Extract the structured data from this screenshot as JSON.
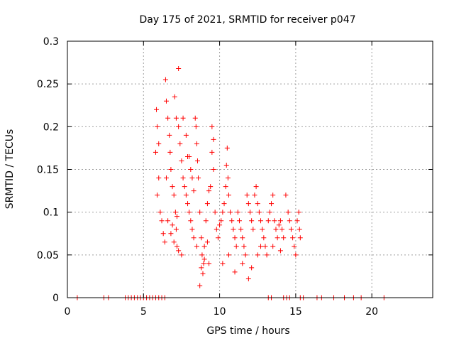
{
  "chart_data": {
    "type": "scatter",
    "title": "Day 175 of 2021, SRMTID for receiver p047",
    "xlabel": "GPS time / hours",
    "ylabel": "SRMTID / TECUs",
    "xlim": [
      0,
      24
    ],
    "ylim": [
      0,
      0.3
    ],
    "xticks": [
      0,
      5,
      10,
      15,
      20
    ],
    "yticks": [
      0,
      0.05,
      0.1,
      0.15,
      0.2,
      0.25,
      0.3
    ],
    "xtick_labels": [
      "0",
      "5",
      "10",
      "15",
      "20"
    ],
    "ytick_labels": [
      "0",
      "0.05",
      "0.1",
      "0.15",
      "0.2",
      "0.25",
      "0.3"
    ],
    "grid": true,
    "marker": "+",
    "color": "#ff0000",
    "series": [
      {
        "name": "SRMTID",
        "points": [
          [
            0.65,
            0
          ],
          [
            2.4,
            0
          ],
          [
            2.7,
            0
          ],
          [
            3.8,
            0
          ],
          [
            4.0,
            0
          ],
          [
            4.2,
            0
          ],
          [
            4.4,
            0
          ],
          [
            4.6,
            0
          ],
          [
            4.8,
            0
          ],
          [
            5.0,
            0
          ],
          [
            5.2,
            0
          ],
          [
            5.4,
            0
          ],
          [
            5.6,
            0
          ],
          [
            5.8,
            0
          ],
          [
            6.0,
            0
          ],
          [
            6.2,
            0
          ],
          [
            6.4,
            0
          ],
          [
            13.2,
            0
          ],
          [
            13.4,
            0
          ],
          [
            14.2,
            0
          ],
          [
            14.4,
            0
          ],
          [
            14.6,
            0
          ],
          [
            15.3,
            0
          ],
          [
            15.5,
            0
          ],
          [
            16.4,
            0
          ],
          [
            16.7,
            0
          ],
          [
            17.5,
            0
          ],
          [
            18.2,
            0
          ],
          [
            18.8,
            0
          ],
          [
            19.3,
            0
          ],
          [
            20.8,
            0
          ],
          [
            5.85,
            0.22
          ],
          [
            5.9,
            0.2
          ],
          [
            6.0,
            0.18
          ],
          [
            5.8,
            0.17
          ],
          [
            6.0,
            0.14
          ],
          [
            5.9,
            0.12
          ],
          [
            6.1,
            0.1
          ],
          [
            6.2,
            0.09
          ],
          [
            6.3,
            0.075
          ],
          [
            6.45,
            0.255
          ],
          [
            6.5,
            0.23
          ],
          [
            6.6,
            0.21
          ],
          [
            6.7,
            0.19
          ],
          [
            6.75,
            0.17
          ],
          [
            6.8,
            0.15
          ],
          [
            6.9,
            0.13
          ],
          [
            7.0,
            0.12
          ],
          [
            7.1,
            0.1
          ],
          [
            7.15,
            0.08
          ],
          [
            7.2,
            0.06
          ],
          [
            7.3,
            0.055
          ],
          [
            6.4,
            0.065
          ],
          [
            6.6,
            0.09
          ],
          [
            7.05,
            0.235
          ],
          [
            7.15,
            0.21
          ],
          [
            7.3,
            0.268
          ],
          [
            7.3,
            0.2
          ],
          [
            7.4,
            0.18
          ],
          [
            7.5,
            0.16
          ],
          [
            7.6,
            0.14
          ],
          [
            7.7,
            0.13
          ],
          [
            7.8,
            0.12
          ],
          [
            7.9,
            0.11
          ],
          [
            8.0,
            0.1
          ],
          [
            8.1,
            0.09
          ],
          [
            8.2,
            0.08
          ],
          [
            8.3,
            0.07
          ],
          [
            7.6,
            0.21
          ],
          [
            7.8,
            0.19
          ],
          [
            7.9,
            0.165
          ],
          [
            8.1,
            0.15
          ],
          [
            8.2,
            0.14
          ],
          [
            8.3,
            0.125
          ],
          [
            8.4,
            0.21
          ],
          [
            8.45,
            0.2
          ],
          [
            8.5,
            0.18
          ],
          [
            8.55,
            0.16
          ],
          [
            8.6,
            0.14
          ],
          [
            8.7,
            0.1
          ],
          [
            8.8,
            0.07
          ],
          [
            8.85,
            0.05
          ],
          [
            8.8,
            0.035
          ],
          [
            8.9,
            0.028
          ],
          [
            8.95,
            0.04
          ],
          [
            8.7,
            0.014
          ],
          [
            9.0,
            0.06
          ],
          [
            9.1,
            0.09
          ],
          [
            9.2,
            0.11
          ],
          [
            9.3,
            0.125
          ],
          [
            9.4,
            0.13
          ],
          [
            9.5,
            0.2
          ],
          [
            9.6,
            0.185
          ],
          [
            9.5,
            0.17
          ],
          [
            9.6,
            0.15
          ],
          [
            9.7,
            0.1
          ],
          [
            9.8,
            0.08
          ],
          [
            9.9,
            0.07
          ],
          [
            10.0,
            0.085
          ],
          [
            10.1,
            0.09
          ],
          [
            10.2,
            0.1
          ],
          [
            10.3,
            0.11
          ],
          [
            10.4,
            0.13
          ],
          [
            10.45,
            0.155
          ],
          [
            10.5,
            0.175
          ],
          [
            10.55,
            0.14
          ],
          [
            10.6,
            0.12
          ],
          [
            10.7,
            0.1
          ],
          [
            10.8,
            0.09
          ],
          [
            10.9,
            0.08
          ],
          [
            11.0,
            0.07
          ],
          [
            11.1,
            0.06
          ],
          [
            11.2,
            0.1
          ],
          [
            11.3,
            0.09
          ],
          [
            11.4,
            0.08
          ],
          [
            11.5,
            0.07
          ],
          [
            11.6,
            0.06
          ],
          [
            11.7,
            0.05
          ],
          [
            11.8,
            0.12
          ],
          [
            11.9,
            0.11
          ],
          [
            12.0,
            0.1
          ],
          [
            12.1,
            0.09
          ],
          [
            12.2,
            0.08
          ],
          [
            12.3,
            0.12
          ],
          [
            12.4,
            0.13
          ],
          [
            12.5,
            0.11
          ],
          [
            12.6,
            0.1
          ],
          [
            12.7,
            0.09
          ],
          [
            12.8,
            0.08
          ],
          [
            12.9,
            0.07
          ],
          [
            13.0,
            0.06
          ],
          [
            13.1,
            0.05
          ],
          [
            13.2,
            0.09
          ],
          [
            13.3,
            0.1
          ],
          [
            13.4,
            0.11
          ],
          [
            13.5,
            0.12
          ],
          [
            13.6,
            0.09
          ],
          [
            13.7,
            0.08
          ],
          [
            13.8,
            0.07
          ],
          [
            13.9,
            0.085
          ],
          [
            14.0,
            0.09
          ],
          [
            14.1,
            0.08
          ],
          [
            14.2,
            0.07
          ],
          [
            14.35,
            0.12
          ],
          [
            14.5,
            0.1
          ],
          [
            14.6,
            0.09
          ],
          [
            14.7,
            0.08
          ],
          [
            14.8,
            0.07
          ],
          [
            14.9,
            0.06
          ],
          [
            15.0,
            0.05
          ],
          [
            15.1,
            0.09
          ],
          [
            15.2,
            0.1
          ],
          [
            15.25,
            0.08
          ],
          [
            15.3,
            0.07
          ],
          [
            11.9,
            0.022
          ],
          [
            12.1,
            0.035
          ],
          [
            11.0,
            0.03
          ],
          [
            9.3,
            0.04
          ],
          [
            9.0,
            0.045
          ],
          [
            8.5,
            0.06
          ],
          [
            7.5,
            0.05
          ],
          [
            7.0,
            0.065
          ],
          [
            6.8,
            0.075
          ],
          [
            12.5,
            0.05
          ],
          [
            12.7,
            0.06
          ],
          [
            13.5,
            0.06
          ],
          [
            14.0,
            0.055
          ],
          [
            10.2,
            0.04
          ],
          [
            10.6,
            0.05
          ],
          [
            11.5,
            0.04
          ],
          [
            7.2,
            0.095
          ],
          [
            6.5,
            0.14
          ],
          [
            6.9,
            0.085
          ],
          [
            8.0,
            0.165
          ],
          [
            9.2,
            0.065
          ]
        ]
      }
    ]
  }
}
